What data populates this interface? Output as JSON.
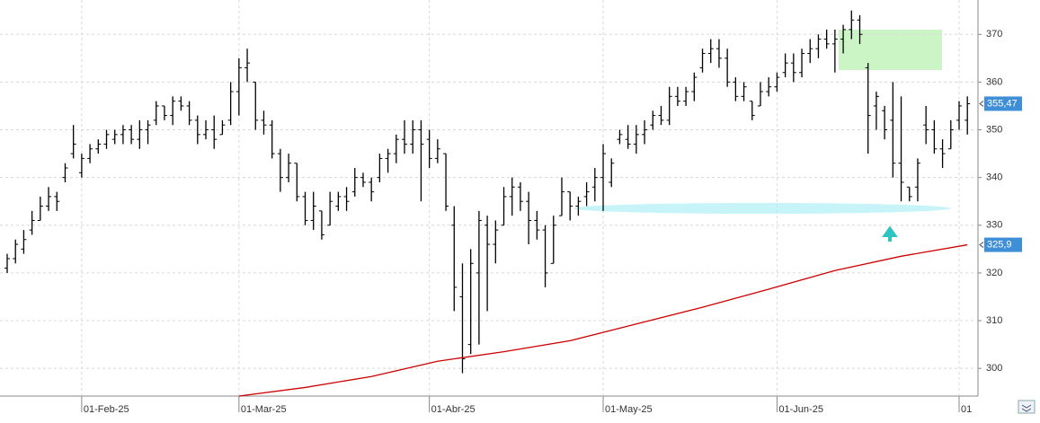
{
  "chart_data": {
    "type": "ohlc",
    "categories": [
      null,
      null,
      null,
      null,
      null,
      null,
      null,
      null,
      null,
      "01-Feb-25",
      null,
      null,
      null,
      null,
      null,
      null,
      null,
      null,
      null,
      null,
      null,
      null,
      null,
      null,
      null,
      null,
      null,
      null,
      "01-Mar-25",
      null,
      null,
      null,
      null,
      null,
      null,
      null,
      null,
      null,
      null,
      null,
      null,
      null,
      null,
      null,
      null,
      null,
      null,
      null,
      null,
      null,
      null,
      "01-Abr-25",
      null,
      null,
      null,
      null,
      null,
      null,
      null,
      null,
      null,
      null,
      null,
      null,
      null,
      null,
      null,
      null,
      null,
      null,
      null,
      null,
      "01-May-25",
      null,
      null,
      null,
      null,
      null,
      null,
      null,
      null,
      null,
      null,
      null,
      null,
      null,
      null,
      null,
      null,
      null,
      null,
      null,
      null,
      "01-Jun-25",
      null,
      null,
      null,
      null,
      null,
      null,
      null,
      null,
      null,
      null,
      null,
      null,
      null,
      null,
      null,
      null,
      null,
      null,
      null,
      null,
      null,
      "01"
    ],
    "ohlc": [
      [
        321,
        324,
        320,
        323
      ],
      [
        323,
        327,
        322,
        326
      ],
      [
        325,
        329,
        324,
        327
      ],
      [
        329,
        333,
        328,
        331
      ],
      [
        331,
        336,
        331,
        334
      ],
      [
        334,
        338,
        333,
        336
      ],
      [
        336,
        337,
        333,
        335
      ],
      [
        340,
        343,
        339,
        342
      ],
      [
        345,
        351,
        344,
        347
      ],
      [
        341,
        345,
        340,
        344
      ],
      [
        344,
        347,
        343,
        346
      ],
      [
        346,
        348,
        345,
        347
      ],
      [
        347,
        350,
        346,
        349
      ],
      [
        348,
        350,
        347,
        349
      ],
      [
        349,
        351,
        347,
        350
      ],
      [
        350,
        351,
        347,
        348
      ],
      [
        348,
        352,
        346,
        350
      ],
      [
        350,
        352,
        347,
        351
      ],
      [
        352,
        356,
        351,
        355
      ],
      [
        355,
        355,
        352,
        353
      ],
      [
        353,
        357,
        351,
        356
      ],
      [
        356,
        357,
        354,
        355
      ],
      [
        355,
        356,
        351,
        352
      ],
      [
        352,
        353,
        347,
        349
      ],
      [
        349,
        352,
        348,
        350
      ],
      [
        350,
        353,
        346,
        348
      ],
      [
        349,
        352,
        349,
        351
      ],
      [
        352,
        360,
        351,
        358
      ],
      [
        358,
        365,
        353,
        363
      ],
      [
        363,
        367,
        360,
        364
      ],
      [
        360,
        360,
        350,
        352
      ],
      [
        352,
        354,
        349,
        351
      ],
      [
        351,
        352,
        344,
        345
      ],
      [
        345,
        346,
        337,
        340
      ],
      [
        340,
        345,
        339,
        343
      ],
      [
        343,
        343,
        335,
        336
      ],
      [
        336,
        337,
        330,
        331
      ],
      [
        331,
        337,
        329,
        334
      ],
      [
        333,
        333,
        327,
        328
      ],
      [
        330,
        337,
        330,
        335
      ],
      [
        334,
        337,
        333,
        336
      ],
      [
        336,
        338,
        333,
        335
      ],
      [
        337,
        342,
        336,
        340
      ],
      [
        340,
        341,
        338,
        339
      ],
      [
        339,
        340,
        335,
        337
      ],
      [
        340,
        345,
        339,
        344
      ],
      [
        344,
        346,
        341,
        345
      ],
      [
        345,
        349,
        343,
        348
      ],
      [
        348,
        352,
        345,
        347
      ],
      [
        347,
        352,
        345,
        350
      ],
      [
        350,
        352,
        335,
        347
      ],
      [
        348,
        350,
        342,
        344
      ],
      [
        344,
        348,
        343,
        346
      ],
      [
        345,
        345,
        333,
        334
      ],
      [
        330,
        334,
        312,
        317
      ],
      [
        315,
        322,
        299,
        302
      ],
      [
        305,
        325,
        303,
        322
      ],
      [
        320,
        333,
        305,
        331
      ],
      [
        330,
        332,
        312,
        326
      ],
      [
        326,
        331,
        322,
        329
      ],
      [
        330,
        338,
        330,
        336
      ],
      [
        336,
        340,
        332,
        338
      ],
      [
        338,
        339,
        333,
        335
      ],
      [
        335,
        337,
        326,
        331
      ],
      [
        331,
        333,
        327,
        329
      ],
      [
        329,
        330,
        317,
        320
      ],
      [
        322,
        332,
        322,
        330
      ],
      [
        332,
        340,
        332,
        337
      ],
      [
        337,
        337,
        331,
        334
      ],
      [
        334,
        336,
        332,
        335
      ],
      [
        336,
        339,
        334,
        337
      ],
      [
        338,
        342,
        335,
        340
      ],
      [
        340,
        347,
        333,
        345
      ],
      [
        339,
        344,
        338,
        343
      ],
      [
        348,
        350,
        347,
        349
      ],
      [
        348,
        351,
        346,
        347
      ],
      [
        347,
        351,
        345,
        349
      ],
      [
        349,
        352,
        347,
        350
      ],
      [
        351,
        354,
        350,
        353
      ],
      [
        353,
        355,
        351,
        352
      ],
      [
        352,
        359,
        351,
        357
      ],
      [
        357,
        359,
        355,
        356
      ],
      [
        356,
        359,
        355,
        358
      ],
      [
        358,
        362,
        356,
        361
      ],
      [
        363,
        367,
        362,
        366
      ],
      [
        366,
        369,
        364,
        367
      ],
      [
        367,
        369,
        363,
        365
      ],
      [
        365,
        367,
        359,
        360
      ],
      [
        360,
        361,
        356,
        357
      ],
      [
        357,
        360,
        356,
        359
      ],
      [
        356,
        356,
        352,
        353
      ],
      [
        355,
        360,
        355,
        358
      ],
      [
        358,
        361,
        357,
        359
      ],
      [
        359,
        362,
        358,
        361
      ],
      [
        362,
        366,
        361,
        364
      ],
      [
        364,
        366,
        360,
        362
      ],
      [
        362,
        367,
        361,
        366
      ],
      [
        366,
        369,
        364,
        367
      ],
      [
        367,
        370,
        365,
        369
      ],
      [
        369,
        371,
        367,
        368
      ],
      [
        368,
        371,
        362,
        369
      ],
      [
        369,
        372,
        366,
        371
      ],
      [
        371,
        375,
        369,
        373
      ],
      [
        373,
        374,
        368,
        370
      ],
      [
        363,
        364,
        345,
        353
      ],
      [
        355,
        358,
        350,
        357
      ],
      [
        354,
        355,
        348,
        350
      ],
      [
        352,
        360,
        340,
        343
      ],
      [
        343,
        357,
        335,
        339
      ],
      [
        338,
        338,
        335,
        336
      ],
      [
        338,
        344,
        335,
        343
      ],
      [
        351,
        355,
        347,
        350
      ],
      [
        350,
        352,
        345,
        346
      ],
      [
        346,
        348,
        342,
        345
      ],
      [
        346,
        352,
        346,
        350
      ],
      [
        352,
        356,
        350,
        355
      ],
      [
        352,
        357,
        349,
        355.47
      ]
    ],
    "ma": {
      "color": "#cc0000",
      "x": [
        28,
        36,
        44,
        52,
        60,
        68,
        76,
        84,
        92,
        100,
        108,
        116
      ],
      "values": [
        294.2,
        296,
        298.3,
        301.5,
        303.5,
        305.8,
        309.3,
        312.8,
        316.6,
        320.5,
        323.5,
        325.9
      ]
    },
    "last_labels": [
      {
        "value": 355.47,
        "label": "355,47"
      },
      {
        "value": 325.9,
        "label": "325,9"
      }
    ],
    "color": "#000000",
    "ylim": [
      294.2,
      377.2
    ],
    "yticks": [
      300,
      310,
      320,
      330,
      340,
      350,
      360,
      370
    ],
    "grid": true
  }
}
